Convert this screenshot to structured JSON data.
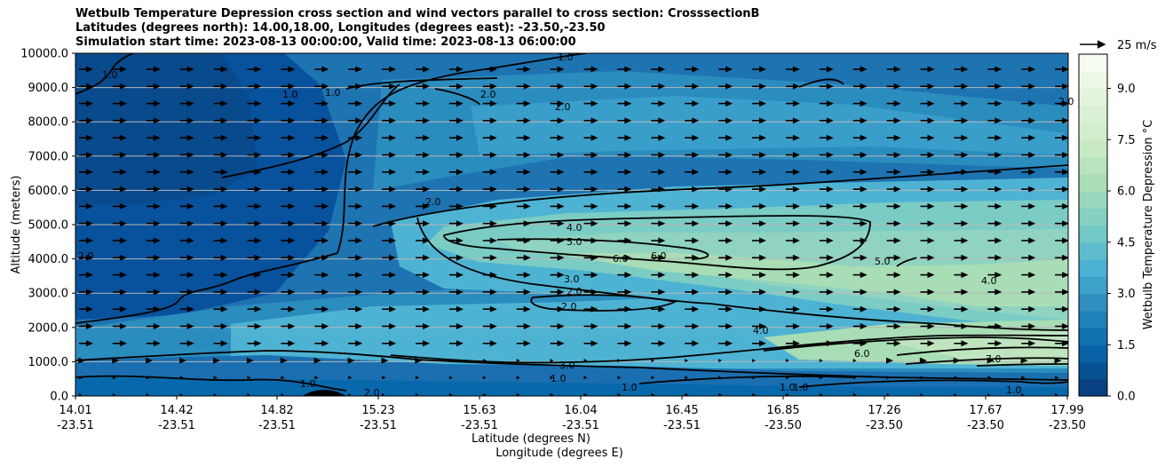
{
  "chart_data": {
    "type": "heatmap",
    "title_lines": [
      "Wetbulb Temperature Depression cross section and wind vectors parallel to cross section: CrosssectionB",
      "Latitudes (degrees north): 14.00,18.00, Longitudes (degrees east): -23.50,-23.50",
      "Simulation start time: 2023-08-13 00:00:00, Valid time: 2023-08-13 06:00:00"
    ],
    "ylabel": "Altitude (meters)",
    "xlabel_lat": "Latitude (degrees N)",
    "xlabel_lon": "Longitude (degrees E)",
    "ylim": [
      0,
      10000
    ],
    "y_ticks": [
      "0.0",
      "1000.0",
      "2000.0",
      "3000.0",
      "4000.0",
      "5000.0",
      "6000.0",
      "7000.0",
      "8000.0",
      "9000.0",
      "10000.0"
    ],
    "x_ticks_lat": [
      "14.01",
      "14.42",
      "14.82",
      "15.23",
      "15.63",
      "16.04",
      "16.45",
      "16.85",
      "17.26",
      "17.67",
      "17.99"
    ],
    "x_ticks_lon": [
      "-23.51",
      "-23.51",
      "-23.51",
      "-23.51",
      "-23.51",
      "-23.51",
      "-23.51",
      "-23.50",
      "-23.50",
      "-23.50",
      "-23.50"
    ],
    "grid": "horizontal",
    "colorbar": {
      "label": "Wetbulb Temperature Depression °C",
      "ticks": [
        "0.0",
        "1.5",
        "3.0",
        "4.5",
        "6.0",
        "7.5",
        "9.0"
      ],
      "range": [
        0,
        10
      ],
      "colors": [
        "#084081",
        "#0868ac",
        "#2b8cbe",
        "#4eb3d3",
        "#7bccc4",
        "#a8ddb5",
        "#ccebc5",
        "#e0f3db",
        "#f7fcf0"
      ]
    },
    "quiver_key": "25 m/s",
    "contour_labels": [
      "1.0",
      "2.0",
      "3.0",
      "4.0",
      "5.0",
      "6.0",
      "7.0"
    ]
  }
}
